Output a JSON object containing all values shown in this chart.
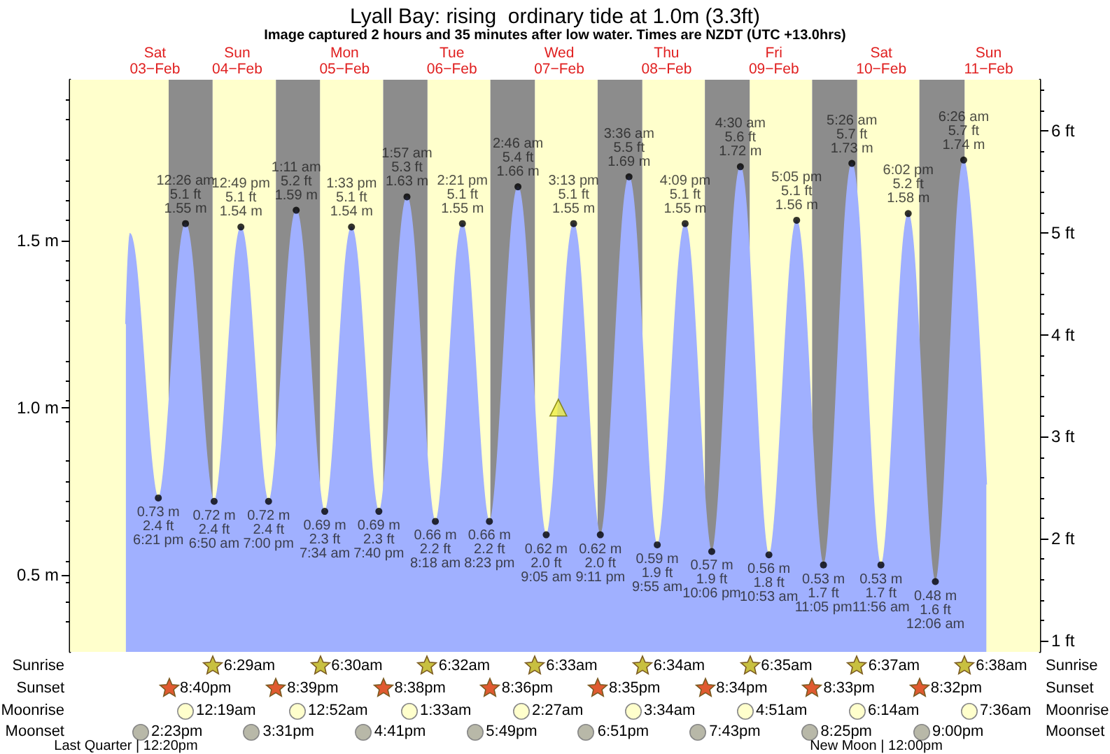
{
  "chart_data": {
    "type": "area",
    "title": "Lyall Bay: rising  ordinary tide at 1.0m (3.3ft)",
    "subtitle": "Image captured 2 hours and 35 minutes after low water. Times are NZDT (UTC +13.0hrs)",
    "xlim": [
      "--02-02T22:36",
      "--02-11T23:30"
    ],
    "xticks": [
      {
        "value": "--02-03T17:36",
        "label": "Sat\n03−Feb"
      },
      {
        "value": "--02-04T12:00",
        "label": "Sun\n04−Feb"
      },
      {
        "value": "--02-05T12:00",
        "label": "Mon\n05−Feb"
      },
      {
        "value": "--02-06T12:00",
        "label": "Tue\n06−Feb"
      },
      {
        "value": "--02-07T12:00",
        "label": "Wed\n07−Feb"
      },
      {
        "value": "--02-08T12:00",
        "label": "Thu\n08−Feb"
      },
      {
        "value": "--02-09T12:00",
        "label": "Fri\n09−Feb"
      },
      {
        "value": "--02-10T12:00",
        "label": "Sat\n10−Feb"
      },
      {
        "value": "--02-11T12:00",
        "label": "Sun\n11−Feb"
      }
    ],
    "ylim": [
      0.27,
      1.98
    ],
    "yticks": [
      {
        "value": 0.5,
        "label": "0.5 m"
      },
      {
        "value": 1.0,
        "label": "1.0 m"
      },
      {
        "value": 1.5,
        "label": "1.5 m"
      }
    ],
    "y2lim": [
      0.89,
      6.5
    ],
    "y2ticks": [
      {
        "value": 1,
        "label": "1 ft"
      },
      {
        "value": 2,
        "label": "2 ft"
      },
      {
        "value": 3,
        "label": "3 ft"
      },
      {
        "value": 4,
        "label": "4 ft"
      },
      {
        "value": 5,
        "label": "5 ft"
      },
      {
        "value": 6,
        "label": "6 ft"
      }
    ],
    "grid": false,
    "series": [
      {
        "color": "#a0b0ff",
        "x": [
          "--02-03T11:06",
          "--02-03T12:00",
          "--02-03T18:21",
          "--02-04T00:26",
          "--02-04T06:50",
          "--02-04T12:49",
          "--02-04T19:00",
          "--02-05T01:11",
          "--02-05T07:34",
          "--02-05T13:33",
          "--02-05T19:40",
          "--02-06T01:57",
          "--02-06T08:18",
          "--02-06T14:21",
          "--02-06T20:23",
          "--02-07T02:46",
          "--02-07T09:05",
          "--02-07T15:13",
          "--02-07T21:11",
          "--02-08T03:36",
          "--02-08T09:55",
          "--02-08T16:09",
          "--02-08T22:06",
          "--02-09T04:30",
          "--02-09T10:53",
          "--02-09T17:05",
          "--02-09T23:05",
          "--02-10T05:26",
          "--02-10T11:56",
          "--02-10T18:02",
          "--02-11T00:06",
          "--02-11T06:26",
          "--02-11T11:30"
        ],
        "values": [
          1.25,
          1.52,
          0.73,
          1.55,
          0.72,
          1.54,
          0.72,
          1.59,
          0.69,
          1.54,
          0.69,
          1.63,
          0.66,
          1.55,
          0.66,
          1.66,
          0.62,
          1.55,
          0.62,
          1.69,
          0.59,
          1.55,
          0.57,
          1.72,
          0.56,
          1.56,
          0.53,
          1.73,
          0.53,
          1.58,
          0.48,
          1.74,
          0.77
        ]
      },
      {
        "type": "scatter",
        "color": "#000000",
        "marker": "circle",
        "x": [
          "--02-03T18:21",
          "--02-04T00:26",
          "--02-04T06:50",
          "--02-04T12:49",
          "--02-04T19:00",
          "--02-05T01:11",
          "--02-05T07:34",
          "--02-05T13:33",
          "--02-05T19:40",
          "--02-06T01:57",
          "--02-06T08:18",
          "--02-06T14:21",
          "--02-06T20:23",
          "--02-07T02:46",
          "--02-07T09:05",
          "--02-07T15:13",
          "--02-07T21:11",
          "--02-08T03:36",
          "--02-08T09:55",
          "--02-08T16:09",
          "--02-08T22:06",
          "--02-09T04:30",
          "--02-09T10:53",
          "--02-09T17:05",
          "--02-09T23:05",
          "--02-10T05:26",
          "--02-10T11:56",
          "--02-10T18:02",
          "--02-11T00:06",
          "--02-11T06:26"
        ],
        "values": [
          0.73,
          1.55,
          0.72,
          1.54,
          0.72,
          1.59,
          0.69,
          1.54,
          0.69,
          1.63,
          0.66,
          1.55,
          0.66,
          1.66,
          0.62,
          1.55,
          0.62,
          1.69,
          0.59,
          1.55,
          0.57,
          1.72,
          0.56,
          1.56,
          0.53,
          1.73,
          0.53,
          1.58,
          0.48,
          1.74
        ],
        "value_labels": [
          "0.73 m\n2.4 ft\n6:21 pm",
          "12:26 am\n5.1 ft\n1.55 m",
          "0.72 m\n2.4 ft\n6:50 am",
          "12:49 pm\n5.1 ft\n1.54 m",
          "0.72 m\n2.4 ft\n7:00 pm",
          "1:11 am\n5.2 ft\n1.59 m",
          "0.69 m\n2.3 ft\n7:34 am",
          "1:33 pm\n5.1 ft\n1.54 m",
          "0.69 m\n2.3 ft\n7:40 pm",
          "1:57 am\n5.3 ft\n1.63 m",
          "0.66 m\n2.2 ft\n8:18 am",
          "2:21 pm\n5.1 ft\n1.55 m",
          "0.66 m\n2.2 ft\n8:23 pm",
          "2:46 am\n5.4 ft\n1.66 m",
          "0.62 m\n2.0 ft\n9:05 am",
          "3:13 pm\n5.1 ft\n1.55 m",
          "0.62 m\n2.0 ft\n9:11 pm",
          "3:36 am\n5.5 ft\n1.69 m",
          "0.59 m\n1.9 ft\n9:55 am",
          "4:09 pm\n5.1 ft\n1.55 m",
          "0.57 m\n1.9 ft\n10:06 pm",
          "4:30 am\n5.6 ft\n1.72 m",
          "0.56 m\n1.8 ft\n10:53 am",
          "5:05 pm\n5.1 ft\n1.56 m",
          "0.53 m\n1.7 ft\n11:05 pm",
          "5:26 am\n5.7 ft\n1.73 m",
          "0.53 m\n1.7 ft\n11:56 am",
          "6:02 pm\n5.2 ft\n1.58 m",
          "0.48 m\n1.6 ft\n12:06 am",
          "6:26 am\n5.7 ft\n1.74 m"
        ]
      },
      {
        "type": "scatter",
        "color": "#eeee44",
        "marker": "triangle",
        "x": [
          "--02-07T11:48"
        ],
        "values": [
          1.0
        ]
      }
    ],
    "bands": [
      {
        "axis": "x",
        "from": "--02-02T22:36",
        "to": "--02-03T20:40",
        "color": "#ffffcc"
      },
      {
        "axis": "x",
        "from": "--02-04T06:29",
        "to": "--02-04T20:39",
        "color": "#ffffcc"
      },
      {
        "axis": "x",
        "from": "--02-05T06:30",
        "to": "--02-05T20:38",
        "color": "#ffffcc"
      },
      {
        "axis": "x",
        "from": "--02-06T06:32",
        "to": "--02-06T20:36",
        "color": "#ffffcc"
      },
      {
        "axis": "x",
        "from": "--02-07T06:33",
        "to": "--02-07T20:35",
        "color": "#ffffcc"
      },
      {
        "axis": "x",
        "from": "--02-08T06:34",
        "to": "--02-08T20:34",
        "color": "#ffffcc"
      },
      {
        "axis": "x",
        "from": "--02-09T06:35",
        "to": "--02-09T20:33",
        "color": "#ffffcc"
      },
      {
        "axis": "x",
        "from": "--02-10T06:37",
        "to": "--02-10T20:32",
        "color": "#ffffcc"
      },
      {
        "axis": "x",
        "from": "--02-11T06:38",
        "to": "--02-11T23:30",
        "color": "#ffffcc"
      },
      {
        "axis": "x",
        "from": "--02-03T20:40",
        "to": "--02-04T06:29",
        "color": "#8c8c8c"
      },
      {
        "axis": "x",
        "from": "--02-04T20:39",
        "to": "--02-05T06:30",
        "color": "#8c8c8c"
      },
      {
        "axis": "x",
        "from": "--02-05T20:38",
        "to": "--02-06T06:32",
        "color": "#8c8c8c"
      },
      {
        "axis": "x",
        "from": "--02-06T20:36",
        "to": "--02-07T06:33",
        "color": "#8c8c8c"
      },
      {
        "axis": "x",
        "from": "--02-07T20:35",
        "to": "--02-08T06:34",
        "color": "#8c8c8c"
      },
      {
        "axis": "x",
        "from": "--02-08T20:34",
        "to": "--02-09T06:35",
        "color": "#8c8c8c"
      },
      {
        "axis": "x",
        "from": "--02-09T20:33",
        "to": "--02-10T06:37",
        "color": "#8c8c8c"
      },
      {
        "axis": "x",
        "from": "--02-10T20:32",
        "to": "--02-11T06:38",
        "color": "#8c8c8c"
      }
    ],
    "annotations": [
      "Sunrise",
      "Sunset",
      "Moonrise",
      "Moonset",
      "6:29am",
      "6:30am",
      "6:32am",
      "6:33am",
      "6:34am",
      "6:35am",
      "6:37am",
      "6:38am",
      "8:40pm",
      "8:39pm",
      "8:38pm",
      "8:36pm",
      "8:35pm",
      "8:34pm",
      "8:33pm",
      "8:32pm",
      "12:19am",
      "12:52am",
      "1:33am",
      "2:27am",
      "3:34am",
      "4:51am",
      "6:14am",
      "7:36am",
      "2:23pm",
      "3:31pm",
      "4:41pm",
      "5:49pm",
      "6:51pm",
      "7:43pm",
      "8:25pm",
      "9:00pm",
      "Last Quarter | 12:20pm",
      "New Moon | 12:00pm"
    ]
  }
}
